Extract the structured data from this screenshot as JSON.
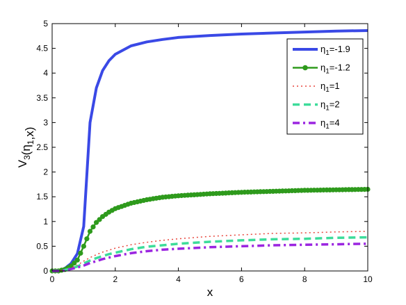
{
  "chart_data": {
    "type": "line",
    "xlabel": "x",
    "ylabel": "V_3(η_1,x)",
    "ylabel_parts": {
      "base": "V",
      "sub1": "3",
      "mid": "(η",
      "sub2": "1",
      "end": ",x)"
    },
    "xlim": [
      0,
      10
    ],
    "ylim": [
      0,
      5
    ],
    "xticks": [
      "0",
      "2",
      "4",
      "6",
      "8",
      "10"
    ],
    "xtick_values": [
      0,
      2,
      4,
      6,
      8,
      10
    ],
    "yticks": [
      "0",
      "0.5",
      "1",
      "1.5",
      "2",
      "2.5",
      "3",
      "3.5",
      "4",
      "4.5",
      "5"
    ],
    "ytick_values": [
      0,
      0.5,
      1,
      1.5,
      2,
      2.5,
      3,
      3.5,
      4,
      4.5,
      5
    ],
    "grid": false,
    "legend_position": "top-right",
    "x": [
      0,
      0.2,
      0.4,
      0.6,
      0.8,
      1.0,
      1.2,
      1.4,
      1.6,
      1.8,
      2.0,
      2.5,
      3,
      3.5,
      4,
      5,
      6,
      7,
      8,
      9,
      10
    ],
    "series": [
      {
        "name": "η_1=-1.9",
        "legend_base": "η",
        "legend_sub": "1",
        "legend_rest": "=-1.9",
        "color": "#3a49e6",
        "style": "solid",
        "y": [
          0,
          0.0,
          0.05,
          0.15,
          0.35,
          0.9,
          3.0,
          3.7,
          4.05,
          4.25,
          4.38,
          4.55,
          4.63,
          4.68,
          4.72,
          4.76,
          4.79,
          4.81,
          4.83,
          4.85,
          4.86
        ]
      },
      {
        "name": "η_1=-1.2",
        "legend_base": "η",
        "legend_sub": "1",
        "legend_rest": "=-1.2",
        "color": "#2e9a1c",
        "style": "solid-marker",
        "y": [
          0,
          0.0,
          0.03,
          0.1,
          0.22,
          0.5,
          0.8,
          0.98,
          1.1,
          1.19,
          1.26,
          1.37,
          1.44,
          1.49,
          1.52,
          1.56,
          1.59,
          1.61,
          1.63,
          1.64,
          1.65
        ]
      },
      {
        "name": "η_1=1",
        "legend_base": "η",
        "legend_sub": "1",
        "legend_rest": "=1",
        "color": "#e8453c",
        "style": "dotted",
        "y": [
          0,
          0.0,
          0.02,
          0.06,
          0.12,
          0.2,
          0.27,
          0.33,
          0.38,
          0.42,
          0.46,
          0.53,
          0.58,
          0.62,
          0.65,
          0.7,
          0.73,
          0.76,
          0.77,
          0.79,
          0.8
        ]
      },
      {
        "name": "η_1=2",
        "legend_base": "η",
        "legend_sub": "1",
        "legend_rest": "=2",
        "color": "#3ddc9a",
        "style": "dashed",
        "y": [
          0,
          0.0,
          0.02,
          0.05,
          0.09,
          0.15,
          0.21,
          0.26,
          0.3,
          0.34,
          0.37,
          0.44,
          0.49,
          0.52,
          0.55,
          0.59,
          0.62,
          0.64,
          0.65,
          0.67,
          0.68
        ]
      },
      {
        "name": "η_1=4",
        "legend_base": "η",
        "legend_sub": "1",
        "legend_rest": "=4",
        "color": "#9b25e0",
        "style": "dashdot",
        "y": [
          0,
          0.0,
          0.01,
          0.04,
          0.07,
          0.11,
          0.16,
          0.2,
          0.24,
          0.27,
          0.3,
          0.36,
          0.4,
          0.43,
          0.45,
          0.48,
          0.5,
          0.52,
          0.53,
          0.54,
          0.55
        ]
      }
    ]
  }
}
